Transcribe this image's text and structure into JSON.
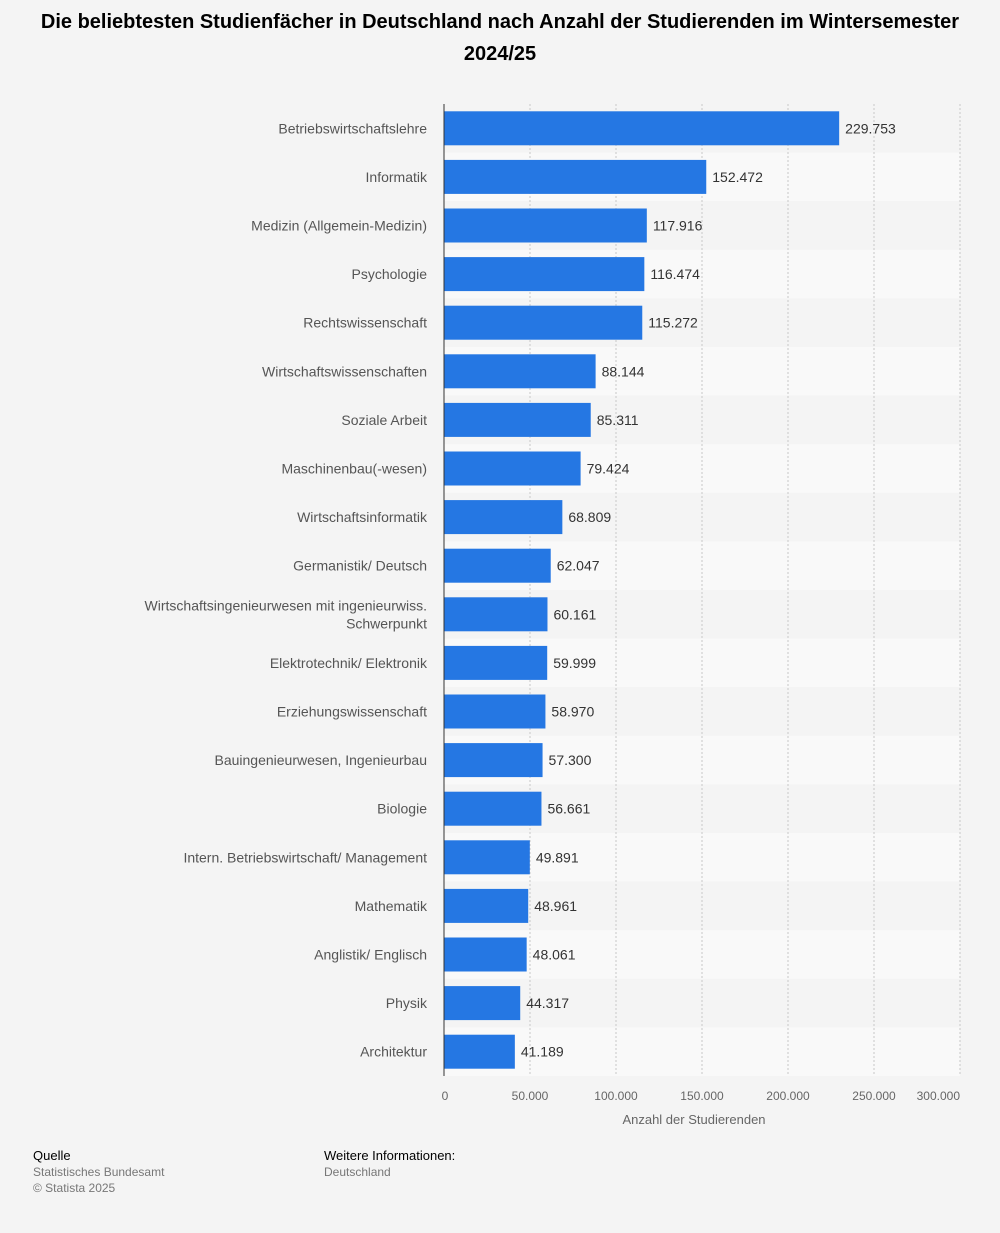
{
  "title": "Die beliebtesten Studienfächer in Deutschland nach Anzahl der Studierenden im Wintersemester 2024/25",
  "chart_data": {
    "type": "bar",
    "orientation": "horizontal",
    "categories": [
      "Betriebswirtschaftslehre",
      "Informatik",
      "Medizin (Allgemein-Medizin)",
      "Psychologie",
      "Rechtswissenschaft",
      "Wirtschaftswissenschaften",
      "Soziale Arbeit",
      "Maschinenbau(-wesen)",
      "Wirtschaftsinformatik",
      "Germanistik/ Deutsch",
      "Wirtschaftsingenieurwesen mit ingenieurwiss. Schwerpunkt",
      "Elektrotechnik/ Elektronik",
      "Erziehungswissenschaft",
      "Bauingenieurwesen, Ingenieurbau",
      "Biologie",
      "Intern. Betriebswirtschaft/ Management",
      "Mathematik",
      "Anglistik/ Englisch",
      "Physik",
      "Architektur"
    ],
    "values": [
      229753,
      152472,
      117916,
      116474,
      115272,
      88144,
      85311,
      79424,
      68809,
      62047,
      60161,
      59999,
      58970,
      57300,
      56661,
      49891,
      48961,
      48061,
      44317,
      41189
    ],
    "value_labels": [
      "229.753",
      "152.472",
      "117.916",
      "116.474",
      "115.272",
      "88.144",
      "85.311",
      "79.424",
      "68.809",
      "62.047",
      "60.161",
      "59.999",
      "58.970",
      "57.300",
      "56.661",
      "49.891",
      "48.961",
      "48.061",
      "44.317",
      "41.189"
    ],
    "xlabel": "Anzahl der Studierenden",
    "ylabel": "",
    "xlim": [
      0,
      300000
    ],
    "ticks": [
      0,
      50000,
      100000,
      150000,
      200000,
      250000,
      300000
    ],
    "tick_labels": [
      "0",
      "50.000",
      "100.000",
      "150.000",
      "200.000",
      "250.000",
      "300.000"
    ],
    "grid": true,
    "bar_color": "#2577e3"
  },
  "footer": {
    "source_heading": "Quelle",
    "source_name": "Statistisches Bundesamt",
    "copyright": "© Statista 2025",
    "info_heading": "Weitere Informationen:",
    "info_region": "Deutschland"
  }
}
